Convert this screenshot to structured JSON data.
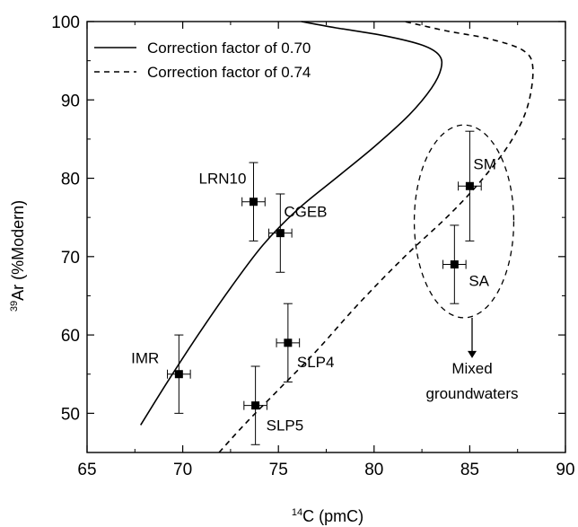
{
  "chart_data": {
    "type": "scatter",
    "xlabel_sup": "14",
    "xlabel_main": "C (pmC)",
    "ylabel_sup": "39",
    "ylabel_main": "Ar (%Modern)",
    "xlim": [
      65,
      90
    ],
    "ylim": [
      45,
      100
    ],
    "xticks": [
      65,
      70,
      75,
      80,
      85,
      90
    ],
    "yticks": [
      50,
      60,
      70,
      80,
      90,
      100
    ],
    "x_tick_labels": [
      "65",
      "70",
      "75",
      "80",
      "85",
      "90"
    ],
    "y_tick_labels": [
      "50",
      "60",
      "70",
      "80",
      "90",
      "100"
    ],
    "legend_position": "top-left",
    "series": [
      {
        "name": "Correction factor of 0.70",
        "style": "solid",
        "points": [
          [
            67.8,
            48.5
          ],
          [
            69.2,
            54
          ],
          [
            70.8,
            60
          ],
          [
            72.5,
            66
          ],
          [
            74.2,
            71.5
          ],
          [
            76.0,
            76
          ],
          [
            78.0,
            80
          ],
          [
            80.0,
            84
          ],
          [
            81.8,
            88
          ],
          [
            83.0,
            91.5
          ],
          [
            83.5,
            94
          ],
          [
            83.4,
            95.7
          ],
          [
            82.5,
            97
          ],
          [
            80.5,
            98.2
          ],
          [
            78.0,
            99.2
          ],
          [
            76.2,
            100
          ]
        ]
      },
      {
        "name": "Correction factor of 0.74",
        "style": "dashed",
        "points": [
          [
            71.9,
            45
          ],
          [
            73.2,
            48.5
          ],
          [
            75.0,
            53
          ],
          [
            77.0,
            58
          ],
          [
            79.2,
            64
          ],
          [
            81.6,
            70
          ],
          [
            84.0,
            75.5
          ],
          [
            85.7,
            80
          ],
          [
            87.1,
            84.5
          ],
          [
            88.0,
            89
          ],
          [
            88.3,
            94
          ],
          [
            87.8,
            96.3
          ],
          [
            86.0,
            97.8
          ],
          [
            83.8,
            98.8
          ],
          [
            81.6,
            100
          ]
        ]
      }
    ],
    "points": [
      {
        "label": "LRN10",
        "x": 73.7,
        "y": 77,
        "xerr": 0.6,
        "yerr": 5
      },
      {
        "label": "CGEB",
        "x": 75.1,
        "y": 73,
        "xerr": 0.6,
        "yerr": 5
      },
      {
        "label": "IMR",
        "x": 69.8,
        "y": 55,
        "xerr": 0.6,
        "yerr": 5
      },
      {
        "label": "SLP4",
        "x": 75.5,
        "y": 59,
        "xerr": 0.6,
        "yerr": 5
      },
      {
        "label": "SLP5",
        "x": 73.8,
        "y": 51,
        "xerr": 0.6,
        "yerr": 5
      },
      {
        "label": "SM",
        "x": 85.0,
        "y": 79,
        "xerr": 0.6,
        "yerr": 7
      },
      {
        "label": "SA",
        "x": 84.2,
        "y": 69,
        "xerr": 0.6,
        "yerr": 5
      }
    ],
    "annotation": {
      "line1": "Mixed",
      "line2": "groundwaters",
      "ellipse_center": [
        84.7,
        74.5
      ],
      "ellipse_radii": [
        2.6,
        12.3
      ]
    }
  }
}
